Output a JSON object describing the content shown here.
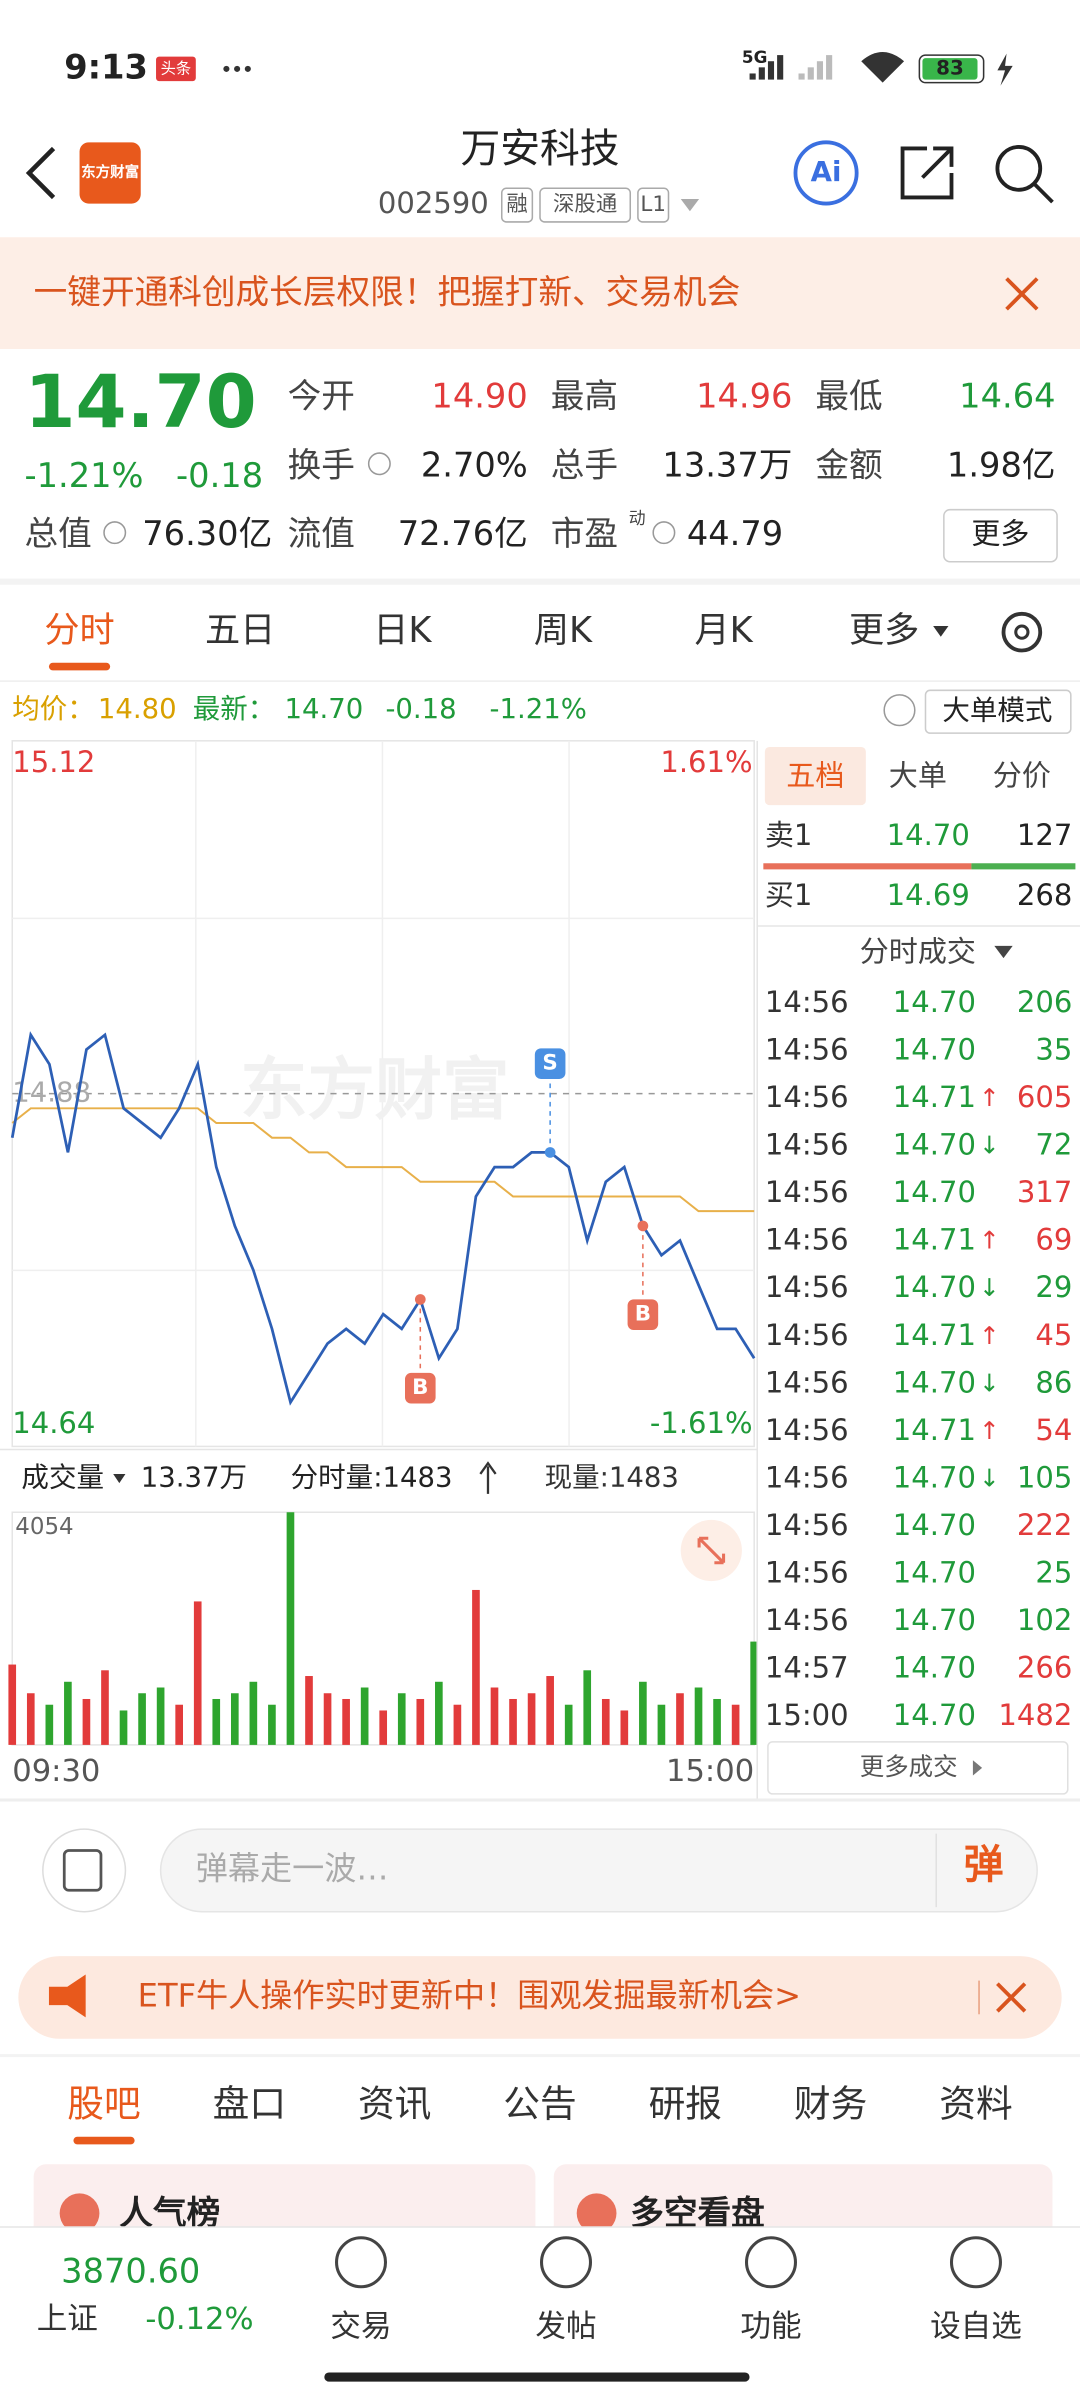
{
  "status": {
    "time": "9:13",
    "badge": "头条",
    "network": "5G",
    "battery": "83"
  },
  "header": {
    "logo": "东方财富",
    "title": "万安科技",
    "code": "002590",
    "tags": [
      "融",
      "深股通",
      "L1"
    ],
    "ai": "Ai"
  },
  "banner": "一键开通科创成长层权限！把握打新、交易机会",
  "quote": {
    "price": "14.70",
    "change_pct": "-1.21%",
    "change": "-0.18",
    "fields": [
      {
        "label": "今开",
        "value": "14.90"
      },
      {
        "label": "最高",
        "value": "14.96"
      },
      {
        "label": "最低",
        "value": "14.64"
      },
      {
        "label": "换手",
        "value": "2.70%"
      },
      {
        "label": "总手",
        "value": "13.37万"
      },
      {
        "label": "金额",
        "value": "1.98亿"
      },
      {
        "label": "总值",
        "value": "76.30亿"
      },
      {
        "label": "流值",
        "value": "72.76亿"
      },
      {
        "label": "市盈",
        "value": "44.79",
        "sup": "动"
      }
    ],
    "more": "更多"
  },
  "tabs": [
    "分时",
    "五日",
    "日K",
    "周K",
    "月K",
    "更多"
  ],
  "info": {
    "avg_label": "均价：",
    "avg": "14.80",
    "last_label": "最新：",
    "last": "14.70",
    "change": "-0.18",
    "change_pct": "-1.21%",
    "mode": "大单模式"
  },
  "chart_data": {
    "type": "line",
    "ylim": [
      14.64,
      15.12
    ],
    "pct_top": "1.61%",
    "pct_bottom": "-1.61%",
    "prev_close": 14.88,
    "watermark": "东方财富",
    "price": [
      14.85,
      14.92,
      14.9,
      14.84,
      14.91,
      14.92,
      14.87,
      14.86,
      14.85,
      14.87,
      14.9,
      14.83,
      14.79,
      14.76,
      14.72,
      14.67,
      14.69,
      14.71,
      14.72,
      14.71,
      14.73,
      14.72,
      14.74,
      14.7,
      14.72,
      14.81,
      14.83,
      14.83,
      14.84,
      14.84,
      14.83,
      14.78,
      14.82,
      14.83,
      14.79,
      14.77,
      14.78,
      14.75,
      14.72,
      14.72,
      14.7
    ],
    "avg": [
      14.86,
      14.87,
      14.87,
      14.87,
      14.87,
      14.87,
      14.87,
      14.87,
      14.87,
      14.87,
      14.87,
      14.86,
      14.86,
      14.86,
      14.85,
      14.85,
      14.84,
      14.84,
      14.83,
      14.83,
      14.83,
      14.83,
      14.82,
      14.82,
      14.82,
      14.82,
      14.82,
      14.81,
      14.81,
      14.81,
      14.81,
      14.81,
      14.81,
      14.81,
      14.81,
      14.81,
      14.81,
      14.8,
      14.8,
      14.8,
      14.8
    ],
    "price_color": "#2d5fb5",
    "avg_color": "#e8b04a",
    "signals": [
      "B",
      "S",
      "B"
    ],
    "vol_label": "成交量",
    "vol_total": "13.37万",
    "tick_vol": "分时量:1483",
    "cur_vol": "现量:1483",
    "vol_max": 4054,
    "volume": [
      1400,
      900,
      700,
      1100,
      800,
      1300,
      600,
      900,
      1000,
      700,
      2500,
      800,
      900,
      1100,
      700,
      4054,
      1200,
      900,
      800,
      1000,
      600,
      900,
      800,
      1100,
      700,
      2700,
      1000,
      800,
      900,
      1200,
      700,
      1300,
      800,
      600,
      1100,
      700,
      900,
      1000,
      800,
      700,
      1800
    ],
    "up_color": "#e23b3b",
    "down_color": "#2ea52e",
    "x_start": "09:30",
    "x_end": "15:00"
  },
  "panel": {
    "tabs": [
      "五档",
      "大单",
      "分价"
    ],
    "ask": {
      "label": "卖1",
      "price": "14.70",
      "vol": 127
    },
    "bid": {
      "label": "买1",
      "price": "14.69",
      "vol": 268
    },
    "trades_title": "分时成交",
    "trades": [
      {
        "time": "14:56",
        "price": "14.70",
        "vol": 206,
        "color": "green"
      },
      {
        "time": "14:56",
        "price": "14.70",
        "vol": 35,
        "color": "green"
      },
      {
        "time": "14:56",
        "price": "14.71",
        "arrow": "↑",
        "vol": 605,
        "color": "red"
      },
      {
        "time": "14:56",
        "price": "14.70",
        "arrow": "↓",
        "vol": 72,
        "color": "green"
      },
      {
        "time": "14:56",
        "price": "14.70",
        "vol": 317,
        "color": "red"
      },
      {
        "time": "14:56",
        "price": "14.71",
        "arrow": "↑",
        "vol": 69,
        "color": "red"
      },
      {
        "time": "14:56",
        "price": "14.70",
        "arrow": "↓",
        "vol": 29,
        "color": "green"
      },
      {
        "time": "14:56",
        "price": "14.71",
        "arrow": "↑",
        "vol": 45,
        "color": "red"
      },
      {
        "time": "14:56",
        "price": "14.70",
        "arrow": "↓",
        "vol": 86,
        "color": "green"
      },
      {
        "time": "14:56",
        "price": "14.71",
        "arrow": "↑",
        "vol": 54,
        "color": "red"
      },
      {
        "time": "14:56",
        "price": "14.70",
        "arrow": "↓",
        "vol": 105,
        "color": "green"
      },
      {
        "time": "14:56",
        "price": "14.70",
        "vol": 222,
        "color": "red"
      },
      {
        "time": "14:56",
        "price": "14.70",
        "vol": 25,
        "color": "green"
      },
      {
        "time": "14:56",
        "price": "14.70",
        "vol": 102,
        "color": "green"
      },
      {
        "time": "14:57",
        "price": "14.70",
        "vol": 266,
        "color": "red"
      },
      {
        "time": "15:00",
        "price": "14.70",
        "vol": 1482,
        "color": "red"
      }
    ],
    "more": "更多成交"
  },
  "comment": {
    "placeholder": "弹幕走一波…",
    "button": "弹"
  },
  "ad": "ETF牛人操作实时更新中！围观发掘最新机会>",
  "sections": [
    "股吧",
    "盘口",
    "资讯",
    "公告",
    "研报",
    "财务",
    "资料"
  ],
  "cards": [
    "人气榜",
    "多空看盘"
  ],
  "nav": {
    "index": "3870.60",
    "index_name": "上证",
    "index_change": "-0.12%",
    "items": [
      "交易",
      "发帖",
      "功能",
      "设自选"
    ]
  }
}
